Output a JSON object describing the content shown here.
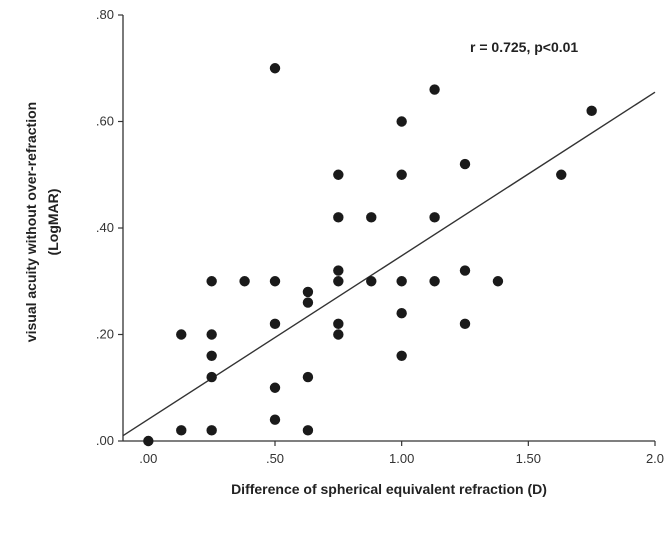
{
  "chart_data": {
    "type": "scatter",
    "title": "",
    "xlabel": "Difference of spherical equivalent refraction (D)",
    "ylabel_lines": [
      "visual acuity without over-refraction",
      "(LogMAR)"
    ],
    "annotation": "r = 0.725, p<0.01",
    "xlim": [
      -0.1,
      2.0
    ],
    "ylim": [
      0.0,
      0.8
    ],
    "x_ticks": [
      0.0,
      0.5,
      1.0,
      1.5,
      2.0
    ],
    "x_tick_labels": [
      ".00",
      ".50",
      "1.00",
      "1.50",
      "2.0"
    ],
    "y_ticks": [
      0.0,
      0.2,
      0.4,
      0.6,
      0.8
    ],
    "y_tick_labels": [
      ".00",
      ".20",
      ".40",
      ".60",
      ".80"
    ],
    "grid": false,
    "fit_line": {
      "x": [
        -0.1,
        2.0
      ],
      "y": [
        0.01,
        0.655
      ]
    },
    "points": [
      {
        "x": 0.0,
        "y": 0.0
      },
      {
        "x": 0.13,
        "y": 0.02
      },
      {
        "x": 0.13,
        "y": 0.2
      },
      {
        "x": 0.25,
        "y": 0.02
      },
      {
        "x": 0.25,
        "y": 0.12
      },
      {
        "x": 0.25,
        "y": 0.16
      },
      {
        "x": 0.25,
        "y": 0.2
      },
      {
        "x": 0.25,
        "y": 0.3
      },
      {
        "x": 0.38,
        "y": 0.3
      },
      {
        "x": 0.5,
        "y": 0.04
      },
      {
        "x": 0.5,
        "y": 0.1
      },
      {
        "x": 0.5,
        "y": 0.22
      },
      {
        "x": 0.5,
        "y": 0.3
      },
      {
        "x": 0.5,
        "y": 0.7
      },
      {
        "x": 0.63,
        "y": 0.02
      },
      {
        "x": 0.63,
        "y": 0.12
      },
      {
        "x": 0.63,
        "y": 0.26
      },
      {
        "x": 0.63,
        "y": 0.28
      },
      {
        "x": 0.75,
        "y": 0.2
      },
      {
        "x": 0.75,
        "y": 0.22
      },
      {
        "x": 0.75,
        "y": 0.3
      },
      {
        "x": 0.75,
        "y": 0.32
      },
      {
        "x": 0.75,
        "y": 0.42
      },
      {
        "x": 0.75,
        "y": 0.5
      },
      {
        "x": 0.88,
        "y": 0.3
      },
      {
        "x": 0.88,
        "y": 0.42
      },
      {
        "x": 1.0,
        "y": 0.16
      },
      {
        "x": 1.0,
        "y": 0.24
      },
      {
        "x": 1.0,
        "y": 0.3
      },
      {
        "x": 1.0,
        "y": 0.5
      },
      {
        "x": 1.0,
        "y": 0.6
      },
      {
        "x": 1.13,
        "y": 0.3
      },
      {
        "x": 1.13,
        "y": 0.42
      },
      {
        "x": 1.13,
        "y": 0.66
      },
      {
        "x": 1.25,
        "y": 0.22
      },
      {
        "x": 1.25,
        "y": 0.32
      },
      {
        "x": 1.25,
        "y": 0.52
      },
      {
        "x": 1.38,
        "y": 0.3
      },
      {
        "x": 1.63,
        "y": 0.5
      },
      {
        "x": 1.75,
        "y": 0.62
      }
    ],
    "colors": {
      "points": "#1a1a1a",
      "axes": "#333333",
      "fit_line": "#333333"
    }
  }
}
